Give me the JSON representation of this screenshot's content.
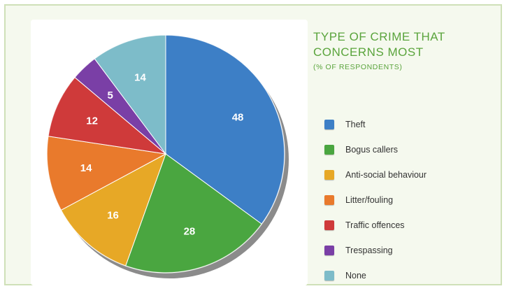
{
  "chart_data": {
    "type": "pie",
    "title_lines": [
      "TYPE OF CRIME THAT",
      "CONCERNS MOST"
    ],
    "subtitle": "(% OF RESPONDENTS)",
    "slices": [
      {
        "label": "Theft",
        "value": 48,
        "color": "#3d7fc6"
      },
      {
        "label": "Bogus callers",
        "value": 28,
        "color": "#4aa640"
      },
      {
        "label": "Anti-social behaviour",
        "value": 16,
        "color": "#e7a826"
      },
      {
        "label": "Litter/fouling",
        "value": 14,
        "color": "#e97a2c"
      },
      {
        "label": "Traffic offences",
        "value": 12,
        "color": "#cf3a3a"
      },
      {
        "label": "Trespassing",
        "value": 5,
        "color": "#7a3fa6"
      },
      {
        "label": "None",
        "value": 14,
        "color": "#7dbcc9"
      }
    ],
    "legend_position": "right"
  }
}
